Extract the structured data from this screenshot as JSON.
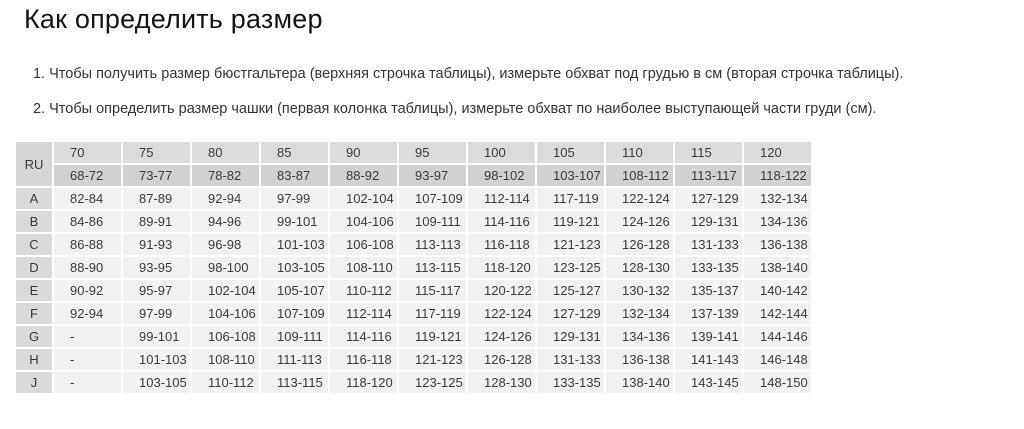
{
  "page": {
    "title": "Как определить размер",
    "instructions": [
      "1. Чтобы получить размер бюстгальтера (верхняя строчка таблицы), измерьте обхват под грудью в см (вторая строчка таблицы).",
      "2. Чтобы определить размер чашки (первая колонка таблицы), измерьте обхват по наиболее выступающей части груди (см)."
    ]
  },
  "table": {
    "corner_label": "RU",
    "band_sizes": [
      "70",
      "75",
      "80",
      "85",
      "90",
      "95",
      "100",
      "105",
      "110",
      "115",
      "120"
    ],
    "underbust_ranges": [
      "68-72",
      "73-77",
      "78-82",
      "83-87",
      "88-92",
      "93-97",
      "98-102",
      "103-107",
      "108-112",
      "113-117",
      "118-122"
    ],
    "rows": [
      {
        "cup": "A",
        "values": [
          "82-84",
          "87-89",
          "92-94",
          "97-99",
          "102-104",
          "107-109",
          "112-114",
          "117-119",
          "122-124",
          "127-129",
          "132-134"
        ]
      },
      {
        "cup": "B",
        "values": [
          "84-86",
          "89-91",
          "94-96",
          "99-101",
          "104-106",
          "109-111",
          "114-116",
          "119-121",
          "124-126",
          "129-131",
          "134-136"
        ]
      },
      {
        "cup": "C",
        "values": [
          "86-88",
          "91-93",
          "96-98",
          "101-103",
          "106-108",
          "113-113",
          "116-118",
          "121-123",
          "126-128",
          "131-133",
          "136-138"
        ]
      },
      {
        "cup": "D",
        "values": [
          "88-90",
          "93-95",
          "98-100",
          "103-105",
          "108-110",
          "113-115",
          "118-120",
          "123-125",
          "128-130",
          "133-135",
          "138-140"
        ]
      },
      {
        "cup": "E",
        "values": [
          "90-92",
          "95-97",
          "102-104",
          "105-107",
          "110-112",
          "115-117",
          "120-122",
          "125-127",
          "130-132",
          "135-137",
          "140-142"
        ]
      },
      {
        "cup": "F",
        "values": [
          "92-94",
          "97-99",
          "104-106",
          "107-109",
          "112-114",
          "117-119",
          "122-124",
          "127-129",
          "132-134",
          "137-139",
          "142-144"
        ]
      },
      {
        "cup": "G",
        "values": [
          "-",
          "99-101",
          "106-108",
          "109-111",
          "114-116",
          "119-121",
          "124-126",
          "129-131",
          "134-136",
          "139-141",
          "144-146"
        ]
      },
      {
        "cup": "H",
        "values": [
          "-",
          "101-103",
          "108-110",
          "111-113",
          "116-118",
          "121-123",
          "126-128",
          "131-133",
          "136-138",
          "141-143",
          "146-148"
        ]
      },
      {
        "cup": "J",
        "values": [
          "-",
          "103-105",
          "110-112",
          "113-115",
          "118-120",
          "123-125",
          "128-130",
          "133-135",
          "138-140",
          "143-145",
          "148-150"
        ]
      }
    ]
  },
  "colors": {
    "page_bg": "#ffffff",
    "title_color": "#141414",
    "text_color": "#333333",
    "header1_bg": "#dbdbdb",
    "header2_bg": "#d1d1d1",
    "corner_bg": "#d6d6d6",
    "letter_bg": "#dadada",
    "cell_bg": "#f1f1f1",
    "cell_text": "#3a3a3a"
  }
}
